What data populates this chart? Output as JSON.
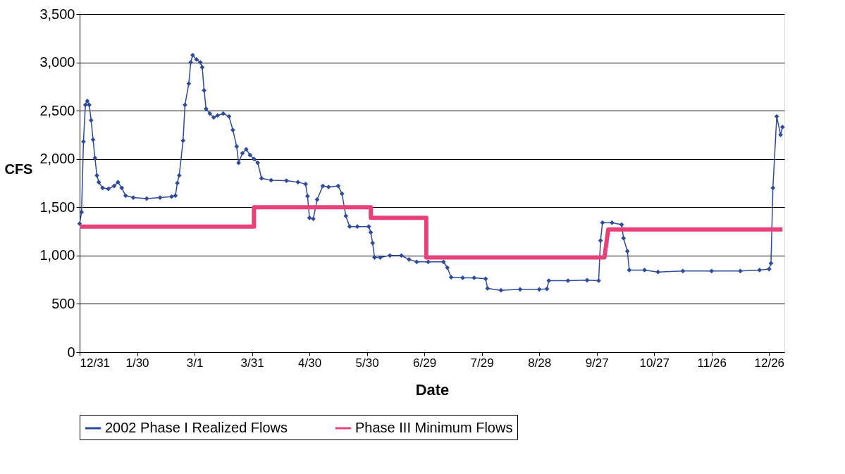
{
  "chart_data": {
    "type": "line",
    "xlabel": "Date",
    "ylabel": "CFS",
    "xlim": [
      "2001-12-31",
      "2003-01-03"
    ],
    "xticks": [
      {
        "value": "2001-12-31",
        "label": "12/31"
      },
      {
        "value": "2002-01-30",
        "label": "1/30"
      },
      {
        "value": "2002-03-01",
        "label": "3/1"
      },
      {
        "value": "2002-03-31",
        "label": "3/31"
      },
      {
        "value": "2002-04-30",
        "label": "4/30"
      },
      {
        "value": "2002-05-30",
        "label": "5/30"
      },
      {
        "value": "2002-06-29",
        "label": "6/29"
      },
      {
        "value": "2002-07-29",
        "label": "7/29"
      },
      {
        "value": "2002-08-28",
        "label": "8/28"
      },
      {
        "value": "2002-09-27",
        "label": "9/27"
      },
      {
        "value": "2002-10-27",
        "label": "10/27"
      },
      {
        "value": "2002-11-26",
        "label": "11/26"
      },
      {
        "value": "2002-12-26",
        "label": "12/26"
      }
    ],
    "ylim": [
      0,
      3500
    ],
    "yticks": [
      {
        "value": 0,
        "label": "0"
      },
      {
        "value": 500,
        "label": "500"
      },
      {
        "value": 1000,
        "label": "1,000"
      },
      {
        "value": 1500,
        "label": "1,500"
      },
      {
        "value": 2000,
        "label": "2,000"
      },
      {
        "value": 2500,
        "label": "2,500"
      },
      {
        "value": 3000,
        "label": "3,000"
      },
      {
        "value": 3500,
        "label": "3,500"
      }
    ],
    "grid": "y",
    "legend": "bottom",
    "series": [
      {
        "name": "2002 Phase I Realized Flows",
        "color": "#2e4a9c",
        "marker": "diamond",
        "line_style": "solid",
        "x": [
          "2001-12-31",
          "2002-01-01",
          "2002-01-02",
          "2002-01-03",
          "2002-01-04",
          "2002-01-05",
          "2002-01-06",
          "2002-01-07",
          "2002-01-08",
          "2002-01-09",
          "2002-01-10",
          "2002-01-12",
          "2002-01-15",
          "2002-01-18",
          "2002-01-20",
          "2002-01-22",
          "2002-01-24",
          "2002-01-28",
          "2002-02-04",
          "2002-02-11",
          "2002-02-17",
          "2002-02-19",
          "2002-02-20",
          "2002-02-21",
          "2002-02-23",
          "2002-02-24",
          "2002-02-26",
          "2002-02-27",
          "2002-02-28",
          "2002-03-02",
          "2002-03-04",
          "2002-03-05",
          "2002-03-06",
          "2002-03-07",
          "2002-03-09",
          "2002-03-11",
          "2002-03-13",
          "2002-03-16",
          "2002-03-19",
          "2002-03-21",
          "2002-03-23",
          "2002-03-24",
          "2002-03-26",
          "2002-03-28",
          "2002-03-30",
          "2002-04-01",
          "2002-04-03",
          "2002-04-05",
          "2002-04-10",
          "2002-04-18",
          "2002-04-24",
          "2002-04-28",
          "2002-04-29",
          "2002-04-30",
          "2002-05-02",
          "2002-05-04",
          "2002-05-07",
          "2002-05-10",
          "2002-05-15",
          "2002-05-17",
          "2002-05-19",
          "2002-05-21",
          "2002-05-25",
          "2002-05-31",
          "2002-06-01",
          "2002-06-02",
          "2002-06-03",
          "2002-06-06",
          "2002-06-11",
          "2002-06-17",
          "2002-06-21",
          "2002-06-25",
          "2002-07-01",
          "2002-07-09",
          "2002-07-11",
          "2002-07-13",
          "2002-07-19",
          "2002-07-25",
          "2002-07-31",
          "2002-08-01",
          "2002-08-08",
          "2002-08-18",
          "2002-08-28",
          "2002-09-01",
          "2002-09-02",
          "2002-09-12",
          "2002-09-22",
          "2002-09-28",
          "2002-09-29",
          "2002-09-30",
          "2002-10-05",
          "2002-10-10",
          "2002-10-11",
          "2002-10-13",
          "2002-10-14",
          "2002-10-22",
          "2002-10-29",
          "2002-11-11",
          "2002-11-26",
          "2002-12-11",
          "2002-12-21",
          "2002-12-26",
          "2002-12-27",
          "2002-12-28",
          "2002-12-30",
          "2003-01-01",
          "2003-01-02"
        ],
        "values": [
          1330,
          1450,
          2180,
          2560,
          2600,
          2560,
          2400,
          2200,
          2010,
          1830,
          1760,
          1700,
          1690,
          1720,
          1760,
          1700,
          1620,
          1600,
          1590,
          1600,
          1610,
          1620,
          1750,
          1830,
          2190,
          2560,
          2780,
          3000,
          3075,
          3030,
          3000,
          2950,
          2710,
          2520,
          2470,
          2430,
          2450,
          2470,
          2440,
          2300,
          2130,
          1960,
          2060,
          2100,
          2040,
          2000,
          1960,
          1800,
          1780,
          1775,
          1760,
          1740,
          1615,
          1390,
          1380,
          1580,
          1720,
          1710,
          1720,
          1640,
          1410,
          1300,
          1300,
          1300,
          1240,
          1130,
          980,
          980,
          1000,
          1000,
          960,
          935,
          935,
          935,
          875,
          775,
          770,
          770,
          760,
          660,
          640,
          650,
          650,
          655,
          740,
          740,
          745,
          740,
          1155,
          1340,
          1340,
          1320,
          1180,
          1045,
          850,
          850,
          830,
          840,
          840,
          840,
          850,
          860,
          920,
          1700,
          2440,
          2250,
          2330
        ]
      },
      {
        "name": "Phase III Minimum Flows",
        "color": "#e8417a",
        "marker": "none",
        "line_style": "solid",
        "x": [
          "2001-12-31",
          "2002-04-01",
          "2002-04-01",
          "2002-06-01",
          "2002-06-01",
          "2002-06-30",
          "2002-06-30",
          "2002-10-01",
          "2002-10-03",
          "2003-01-02"
        ],
        "values": [
          1300,
          1300,
          1500,
          1500,
          1390,
          1390,
          980,
          980,
          1270,
          1270
        ]
      }
    ]
  }
}
